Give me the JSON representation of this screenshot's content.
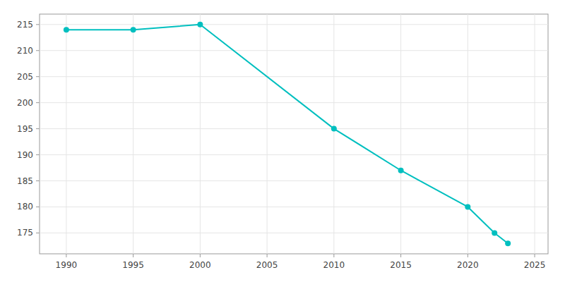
{
  "chart_data": {
    "type": "line",
    "x": [
      1990,
      1995,
      2000,
      2010,
      2015,
      2020,
      2022,
      2023
    ],
    "values": [
      214,
      214,
      215,
      195,
      187,
      180,
      175,
      173
    ],
    "color": "#00BFBF",
    "marker": "circle",
    "xlim": [
      1988,
      2026
    ],
    "ylim": [
      171,
      217
    ],
    "xticks": [
      1990,
      1995,
      2000,
      2005,
      2010,
      2015,
      2020,
      2025
    ],
    "yticks": [
      175,
      180,
      185,
      190,
      195,
      200,
      205,
      210,
      215
    ],
    "grid": true
  }
}
